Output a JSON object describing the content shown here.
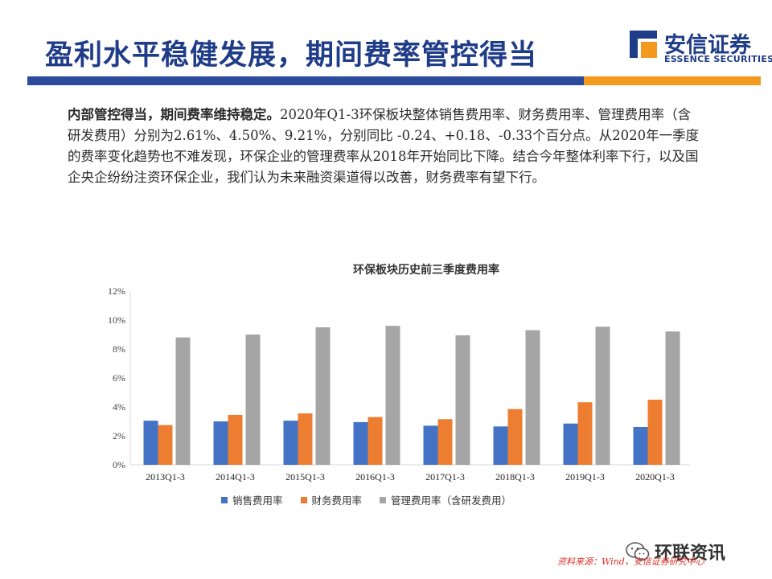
{
  "header": {
    "title": "盈利水平稳健发展，期间费率管控得当",
    "logo_cn": "安信证券",
    "logo_en": "ESSENCE SECURITIES"
  },
  "body": {
    "lead": "内部管控得当，期间费率维持稳定。",
    "text": "2020年Q1-3环保板块整体销售费用率、财务费用率、管理费用率（含研发费用）分别为2.61%、4.50%、9.21%，分别同比 -0.24、+0.18、-0.33个百分点。从2020年一季度的费率变化趋势也不难发现，环保企业的管理费率从2018年开始同比下降。结合今年整体利率下行，以及国企央企纷纷注资环保企业，我们认为未来融资渠道得以改善，财务费率有望下行。"
  },
  "footer": {
    "wechat_name": "环联资讯",
    "source": "资料来源：Wind，安信证券研究中心"
  },
  "colors": {
    "accent": "#2d4b9c",
    "orange_bar": "#f39a1e",
    "series1": "#4472c4",
    "series2": "#ed7d31",
    "series3": "#a5a5a5"
  },
  "chart_data": {
    "type": "bar",
    "title": "环保板块历史前三季度费用率",
    "categories": [
      "2013Q1-3",
      "2014Q1-3",
      "2015Q1-3",
      "2016Q1-3",
      "2017Q1-3",
      "2018Q1-3",
      "2019Q1-3",
      "2020Q1-3"
    ],
    "series": [
      {
        "name": "销售费用率",
        "color": "#4472c4",
        "values": [
          3.05,
          3.0,
          3.05,
          2.95,
          2.7,
          2.65,
          2.85,
          2.61
        ]
      },
      {
        "name": "财务费用率",
        "color": "#ed7d31",
        "values": [
          2.75,
          3.45,
          3.55,
          3.3,
          3.15,
          3.85,
          4.32,
          4.5
        ]
      },
      {
        "name": "管理费用率（含研发费用）",
        "color": "#a5a5a5",
        "values": [
          8.8,
          9.0,
          9.5,
          9.6,
          8.95,
          9.3,
          9.54,
          9.21
        ]
      }
    ],
    "yticks": [
      "0%",
      "2%",
      "4%",
      "6%",
      "8%",
      "10%",
      "12%"
    ],
    "ylim": [
      0,
      12
    ],
    "xlabel": "",
    "ylabel": "",
    "grid": false,
    "legend": "bottom"
  }
}
